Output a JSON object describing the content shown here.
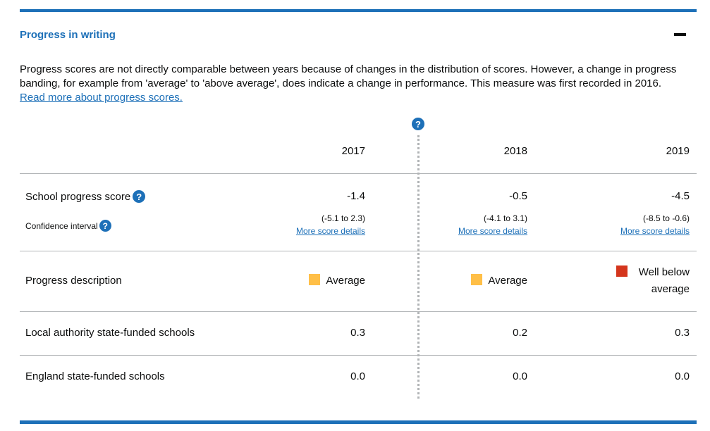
{
  "section": {
    "title": "Progress in writing"
  },
  "intro": {
    "text": "Progress scores are not directly comparable between years because of changes in the distribution of scores. However, a change in progress banding, for example from 'average' to 'above average', does indicate a change in performance. This measure was first recorded in 2016.",
    "link": "Read more about progress scores."
  },
  "help_glyph": "?",
  "years": [
    "2017",
    "2018",
    "2019"
  ],
  "rows": {
    "school_score": {
      "label": "School progress score",
      "values": [
        "-1.4",
        "-0.5",
        "-4.5"
      ]
    },
    "confidence": {
      "label": "Confidence interval",
      "values": [
        "(-5.1 to 2.3)",
        "(-4.1 to 3.1)",
        "(-8.5 to -0.6)"
      ],
      "link": "More score details"
    },
    "progress_description": {
      "label": "Progress description",
      "values": [
        "Average",
        "Average",
        "Well below average"
      ],
      "colors": [
        "#ffbf47",
        "#ffbf47",
        "#d4351c"
      ]
    },
    "local_authority": {
      "label": "Local authority state-funded schools",
      "values": [
        "0.3",
        "0.2",
        "0.3"
      ]
    },
    "england": {
      "label": "England state-funded schools",
      "values": [
        "0.0",
        "0.0",
        "0.0"
      ]
    }
  },
  "colors": {
    "brand_blue": "#1d70b8",
    "average": "#ffbf47",
    "well_below": "#d4351c"
  }
}
